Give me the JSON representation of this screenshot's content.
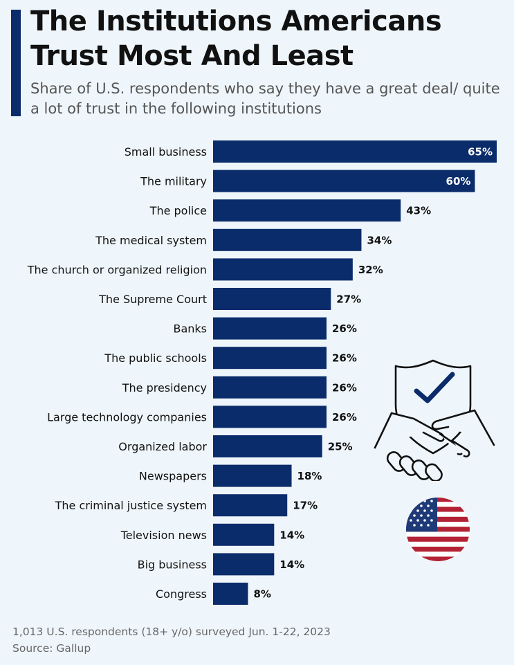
{
  "header": {
    "title": "The Institutions Americans Trust Most And Least",
    "subtitle": "Share of U.S. respondents who say they have a great deal/ quite a lot of trust in the following institutions"
  },
  "footer": {
    "note": "1,013 U.S. respondents (18+ y/o) surveyed Jun. 1-22, 2023",
    "source": "Source: Gallup"
  },
  "colors": {
    "bar": "#0a2c6b",
    "background": "#eff6fb",
    "accent": "#0a2c6b",
    "flag_red": "#b22234",
    "flag_blue": "#1f3a78"
  },
  "icons": [
    "shield-check-handshake-icon",
    "us-flag-icon"
  ],
  "chart_data": {
    "type": "bar",
    "orientation": "horizontal",
    "unit": "%",
    "xlim": [
      0,
      65
    ],
    "grid": false,
    "categories": [
      "Small business",
      "The military",
      "The police",
      "The medical system",
      "The church or organized religion",
      "The Supreme Court",
      "Banks",
      "The public schools",
      "The presidency",
      "Large technology companies",
      "Organized labor",
      "Newspapers",
      "The criminal justice system",
      "Television news",
      "Big business",
      "Congress"
    ],
    "values": [
      65,
      60,
      43,
      34,
      32,
      27,
      26,
      26,
      26,
      26,
      25,
      18,
      17,
      14,
      14,
      8
    ],
    "value_labels": [
      "65%",
      "60%",
      "43%",
      "34%",
      "32%",
      "27%",
      "26%",
      "26%",
      "26%",
      "26%",
      "25%",
      "18%",
      "17%",
      "14%",
      "14%",
      "8%"
    ]
  }
}
